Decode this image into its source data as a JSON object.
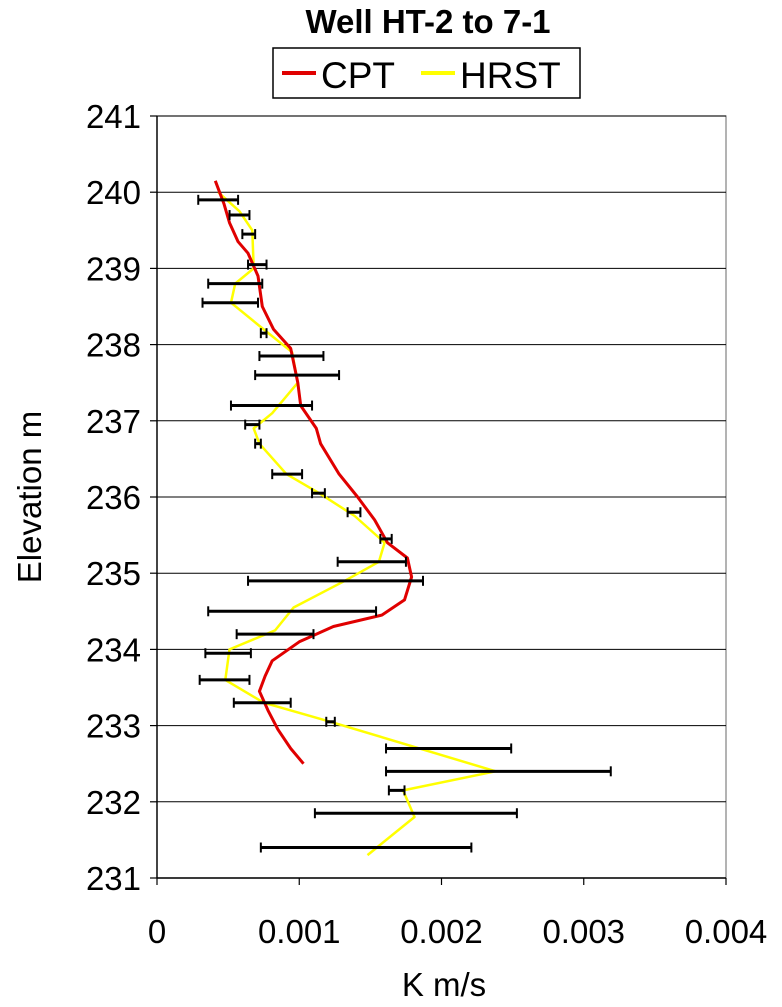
{
  "chart_data": {
    "type": "line",
    "title": "Well HT-2 to 7-1",
    "xlabel": "K m/s",
    "ylabel": "Elevation m",
    "xlim": [
      0,
      0.004
    ],
    "ylim": [
      231,
      241
    ],
    "x_ticks": [
      0,
      0.001,
      0.002,
      0.003,
      0.004
    ],
    "x_tick_labels": [
      "0",
      "0.001",
      "0.002",
      "0.003",
      "0.004"
    ],
    "y_ticks": [
      231,
      232,
      233,
      234,
      235,
      236,
      237,
      238,
      239,
      240,
      241
    ],
    "y_tick_labels": [
      "231",
      "232",
      "233",
      "234",
      "235",
      "236",
      "237",
      "238",
      "239",
      "240",
      "241"
    ],
    "grid": "horizontal",
    "legend_position": "top",
    "series": [
      {
        "name": "CPT",
        "color": "#e00000",
        "points": [
          {
            "x": 0.00041,
            "y": 240.15
          },
          {
            "x": 0.00047,
            "y": 239.85
          },
          {
            "x": 0.00051,
            "y": 239.6
          },
          {
            "x": 0.00057,
            "y": 239.35
          },
          {
            "x": 0.00064,
            "y": 239.2
          },
          {
            "x": 0.00071,
            "y": 238.9
          },
          {
            "x": 0.00074,
            "y": 238.5
          },
          {
            "x": 0.00082,
            "y": 238.2
          },
          {
            "x": 0.00094,
            "y": 237.95
          },
          {
            "x": 0.00099,
            "y": 237.5
          },
          {
            "x": 0.00101,
            "y": 237.2
          },
          {
            "x": 0.00112,
            "y": 236.9
          },
          {
            "x": 0.00115,
            "y": 236.7
          },
          {
            "x": 0.00128,
            "y": 236.3
          },
          {
            "x": 0.00141,
            "y": 236.0
          },
          {
            "x": 0.00153,
            "y": 235.7
          },
          {
            "x": 0.00162,
            "y": 235.4
          },
          {
            "x": 0.00176,
            "y": 235.2
          },
          {
            "x": 0.00179,
            "y": 234.95
          },
          {
            "x": 0.00174,
            "y": 234.65
          },
          {
            "x": 0.00158,
            "y": 234.45
          },
          {
            "x": 0.00124,
            "y": 234.3
          },
          {
            "x": 0.001,
            "y": 234.1
          },
          {
            "x": 0.00081,
            "y": 233.85
          },
          {
            "x": 0.00076,
            "y": 233.65
          },
          {
            "x": 0.00072,
            "y": 233.45
          },
          {
            "x": 0.00078,
            "y": 233.2
          },
          {
            "x": 0.00085,
            "y": 232.95
          },
          {
            "x": 0.00094,
            "y": 232.7
          },
          {
            "x": 0.00103,
            "y": 232.5
          }
        ]
      },
      {
        "name": "HRST",
        "color": "#ffff00",
        "points": [
          {
            "x": 0.00043,
            "y": 240.0
          },
          {
            "x": 0.00058,
            "y": 239.75
          },
          {
            "x": 0.00067,
            "y": 239.5
          },
          {
            "x": 0.00068,
            "y": 239.0
          },
          {
            "x": 0.00055,
            "y": 238.8
          },
          {
            "x": 0.00052,
            "y": 238.55
          },
          {
            "x": 0.00075,
            "y": 238.2
          },
          {
            "x": 0.00095,
            "y": 237.9
          },
          {
            "x": 0.00099,
            "y": 237.5
          },
          {
            "x": 0.00081,
            "y": 237.1
          },
          {
            "x": 0.00068,
            "y": 236.9
          },
          {
            "x": 0.00072,
            "y": 236.7
          },
          {
            "x": 0.00091,
            "y": 236.3
          },
          {
            "x": 0.00114,
            "y": 236.05
          },
          {
            "x": 0.00139,
            "y": 235.75
          },
          {
            "x": 0.0016,
            "y": 235.4
          },
          {
            "x": 0.00156,
            "y": 235.15
          },
          {
            "x": 0.00132,
            "y": 234.9
          },
          {
            "x": 0.00096,
            "y": 234.55
          },
          {
            "x": 0.00083,
            "y": 234.25
          },
          {
            "x": 0.00051,
            "y": 234.0
          },
          {
            "x": 0.00048,
            "y": 233.6
          },
          {
            "x": 0.00075,
            "y": 233.3
          },
          {
            "x": 0.00122,
            "y": 233.05
          },
          {
            "x": 0.00238,
            "y": 232.4
          },
          {
            "x": 0.00173,
            "y": 232.15
          },
          {
            "x": 0.00181,
            "y": 231.8
          },
          {
            "x": 0.00148,
            "y": 231.3
          }
        ]
      }
    ],
    "error_bars": [
      {
        "y": 239.9,
        "xmin": 0.00029,
        "xmax": 0.00057
      },
      {
        "y": 239.7,
        "xmin": 0.00051,
        "xmax": 0.00065
      },
      {
        "y": 239.45,
        "xmin": 0.0006,
        "xmax": 0.00069
      },
      {
        "y": 239.05,
        "xmin": 0.00064,
        "xmax": 0.00077
      },
      {
        "y": 238.8,
        "xmin": 0.00036,
        "xmax": 0.00074
      },
      {
        "y": 238.55,
        "xmin": 0.00032,
        "xmax": 0.00071
      },
      {
        "y": 238.15,
        "xmin": 0.00073,
        "xmax": 0.00077
      },
      {
        "y": 237.85,
        "xmin": 0.00072,
        "xmax": 0.00117
      },
      {
        "y": 237.6,
        "xmin": 0.00069,
        "xmax": 0.00128
      },
      {
        "y": 237.2,
        "xmin": 0.00052,
        "xmax": 0.00109
      },
      {
        "y": 236.95,
        "xmin": 0.00062,
        "xmax": 0.00072
      },
      {
        "y": 236.7,
        "xmin": 0.00069,
        "xmax": 0.00073
      },
      {
        "y": 236.3,
        "xmin": 0.00081,
        "xmax": 0.00102
      },
      {
        "y": 236.05,
        "xmin": 0.00109,
        "xmax": 0.00118
      },
      {
        "y": 235.8,
        "xmin": 0.00134,
        "xmax": 0.00143
      },
      {
        "y": 235.45,
        "xmin": 0.00157,
        "xmax": 0.00165
      },
      {
        "y": 235.15,
        "xmin": 0.00127,
        "xmax": 0.00175
      },
      {
        "y": 234.9,
        "xmin": 0.00064,
        "xmax": 0.00187
      },
      {
        "y": 234.5,
        "xmin": 0.00036,
        "xmax": 0.00154
      },
      {
        "y": 234.2,
        "xmin": 0.00056,
        "xmax": 0.0011
      },
      {
        "y": 233.95,
        "xmin": 0.00034,
        "xmax": 0.00066
      },
      {
        "y": 233.6,
        "xmin": 0.0003,
        "xmax": 0.00065
      },
      {
        "y": 233.3,
        "xmin": 0.00054,
        "xmax": 0.00094
      },
      {
        "y": 233.05,
        "xmin": 0.00119,
        "xmax": 0.00125
      },
      {
        "y": 232.7,
        "xmin": 0.00161,
        "xmax": 0.00249
      },
      {
        "y": 232.4,
        "xmin": 0.00161,
        "xmax": 0.00319
      },
      {
        "y": 232.15,
        "xmin": 0.00163,
        "xmax": 0.00174
      },
      {
        "y": 231.85,
        "xmin": 0.00111,
        "xmax": 0.00253
      },
      {
        "y": 231.4,
        "xmin": 0.00073,
        "xmax": 0.00221
      }
    ]
  }
}
